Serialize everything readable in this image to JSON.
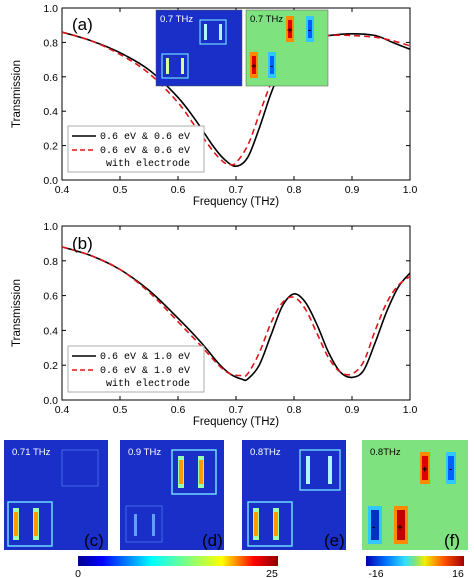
{
  "chart_data": [
    {
      "type": "line",
      "panel_label": "(a)",
      "xlabel": "Frequency (THz)",
      "ylabel": "Transmission",
      "xlim": [
        0.4,
        1.0
      ],
      "ylim": [
        0.0,
        1.0
      ],
      "xticks": [
        "0.4",
        "0.5",
        "0.6",
        "0.7",
        "0.8",
        "0.9",
        "1.0"
      ],
      "yticks": [
        "0.0",
        "0.2",
        "0.4",
        "0.6",
        "0.8",
        "1.0"
      ],
      "legend": "bottom-left",
      "series": [
        {
          "name": "0.6 eV & 0.6 eV",
          "style": "solid",
          "color": "#000000",
          "x": [
            0.4,
            0.45,
            0.5,
            0.55,
            0.6,
            0.63,
            0.66,
            0.68,
            0.7,
            0.72,
            0.74,
            0.76,
            0.78,
            0.8,
            0.83,
            0.86,
            0.9,
            0.94,
            0.97,
            1.0
          ],
          "y": [
            0.86,
            0.81,
            0.74,
            0.64,
            0.48,
            0.35,
            0.2,
            0.12,
            0.08,
            0.13,
            0.3,
            0.5,
            0.66,
            0.76,
            0.82,
            0.84,
            0.85,
            0.84,
            0.8,
            0.76
          ]
        },
        {
          "name": "0.6 eV & 0.6 eV with electrode",
          "style": "dashed",
          "color": "#e0151a",
          "x": [
            0.4,
            0.45,
            0.5,
            0.55,
            0.6,
            0.63,
            0.66,
            0.68,
            0.69,
            0.7,
            0.72,
            0.74,
            0.76,
            0.78,
            0.8,
            0.83,
            0.86,
            0.9,
            0.94,
            0.97,
            1.0
          ],
          "y": [
            0.86,
            0.81,
            0.73,
            0.62,
            0.45,
            0.31,
            0.17,
            0.1,
            0.09,
            0.1,
            0.2,
            0.38,
            0.56,
            0.69,
            0.77,
            0.82,
            0.84,
            0.84,
            0.83,
            0.81,
            0.78
          ]
        }
      ],
      "insets": [
        {
          "label": "0.7 THz",
          "kind": "field"
        },
        {
          "label": "0.7 THz",
          "kind": "charge",
          "marks": [
            "+",
            "-",
            "+",
            "-"
          ]
        }
      ]
    },
    {
      "type": "line",
      "panel_label": "(b)",
      "xlabel": "Frequency (THz)",
      "ylabel": "Transmission",
      "xlim": [
        0.4,
        1.0
      ],
      "ylim": [
        0.0,
        1.0
      ],
      "xticks": [
        "0.4",
        "0.5",
        "0.6",
        "0.7",
        "0.8",
        "0.9",
        "1.0"
      ],
      "yticks": [
        "0.0",
        "0.2",
        "0.4",
        "0.6",
        "0.8",
        "1.0"
      ],
      "legend": "bottom-left",
      "series": [
        {
          "name": "0.6 eV & 1.0 eV",
          "style": "solid",
          "color": "#000000",
          "x": [
            0.4,
            0.45,
            0.5,
            0.55,
            0.6,
            0.64,
            0.67,
            0.69,
            0.71,
            0.72,
            0.74,
            0.76,
            0.78,
            0.8,
            0.82,
            0.84,
            0.86,
            0.88,
            0.9,
            0.92,
            0.94,
            0.96,
            0.98,
            1.0
          ],
          "y": [
            0.88,
            0.83,
            0.75,
            0.63,
            0.47,
            0.33,
            0.21,
            0.15,
            0.12,
            0.12,
            0.2,
            0.37,
            0.54,
            0.61,
            0.56,
            0.43,
            0.27,
            0.16,
            0.13,
            0.17,
            0.33,
            0.51,
            0.65,
            0.73
          ]
        },
        {
          "name": "0.6 eV & 1.0 eV with electrode",
          "style": "dashed",
          "color": "#e0151a",
          "x": [
            0.4,
            0.45,
            0.5,
            0.55,
            0.6,
            0.64,
            0.67,
            0.69,
            0.71,
            0.72,
            0.74,
            0.76,
            0.78,
            0.8,
            0.82,
            0.84,
            0.86,
            0.88,
            0.9,
            0.92,
            0.94,
            0.96,
            0.98,
            1.0
          ],
          "y": [
            0.88,
            0.83,
            0.75,
            0.62,
            0.45,
            0.31,
            0.2,
            0.15,
            0.14,
            0.15,
            0.27,
            0.44,
            0.56,
            0.59,
            0.52,
            0.38,
            0.24,
            0.16,
            0.15,
            0.22,
            0.4,
            0.56,
            0.66,
            0.71
          ]
        }
      ]
    }
  ],
  "field_maps": [
    {
      "panel": "(c)",
      "freq": "0.71 THz",
      "kind": "field"
    },
    {
      "panel": "(d)",
      "freq": "0.9 THz",
      "kind": "field"
    },
    {
      "panel": "(e)",
      "freq": "0.8THz",
      "kind": "field"
    },
    {
      "panel": "(f)",
      "freq": "0.8THz",
      "kind": "charge",
      "marks": [
        "+",
        "-",
        "+",
        "-"
      ]
    }
  ],
  "colorbars": [
    {
      "min": "0",
      "max": "25",
      "for": "field"
    },
    {
      "min": "-16",
      "max": "16",
      "for": "charge"
    }
  ]
}
